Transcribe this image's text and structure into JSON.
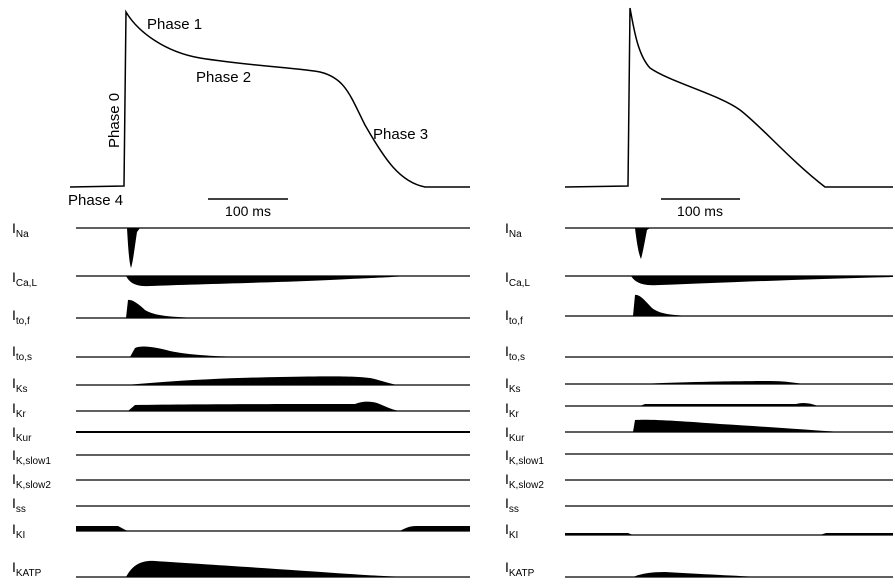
{
  "left_panel": {
    "phase_labels": {
      "phase0": "Phase 0",
      "phase1": "Phase 1",
      "phase2": "Phase 2",
      "phase3": "Phase 3",
      "phase4": "Phase 4"
    },
    "scale_bar_label": "100 ms"
  },
  "right_panel": {
    "scale_bar_label": "100 ms"
  },
  "currents": [
    {
      "id": "na",
      "main": "I",
      "sub": "Na"
    },
    {
      "id": "cal",
      "main": "I",
      "sub": "Ca,L"
    },
    {
      "id": "tof",
      "main": "I",
      "sub": "to,f"
    },
    {
      "id": "tos",
      "main": "I",
      "sub": "to,s"
    },
    {
      "id": "ks",
      "main": "I",
      "sub": "Ks"
    },
    {
      "id": "kr",
      "main": "I",
      "sub": "Kr"
    },
    {
      "id": "kur",
      "main": "I",
      "sub": "Kur"
    },
    {
      "id": "kslow1",
      "main": "I",
      "sub": "K,slow1"
    },
    {
      "id": "kslow2",
      "main": "I",
      "sub": "K,slow2"
    },
    {
      "id": "ss",
      "main": "I",
      "sub": "ss"
    },
    {
      "id": "k1",
      "main": "I",
      "sub": "KI"
    },
    {
      "id": "katp",
      "main": "I",
      "sub": "KATP"
    }
  ],
  "colors": {
    "ink": "#000000",
    "background": "#ffffff"
  }
}
